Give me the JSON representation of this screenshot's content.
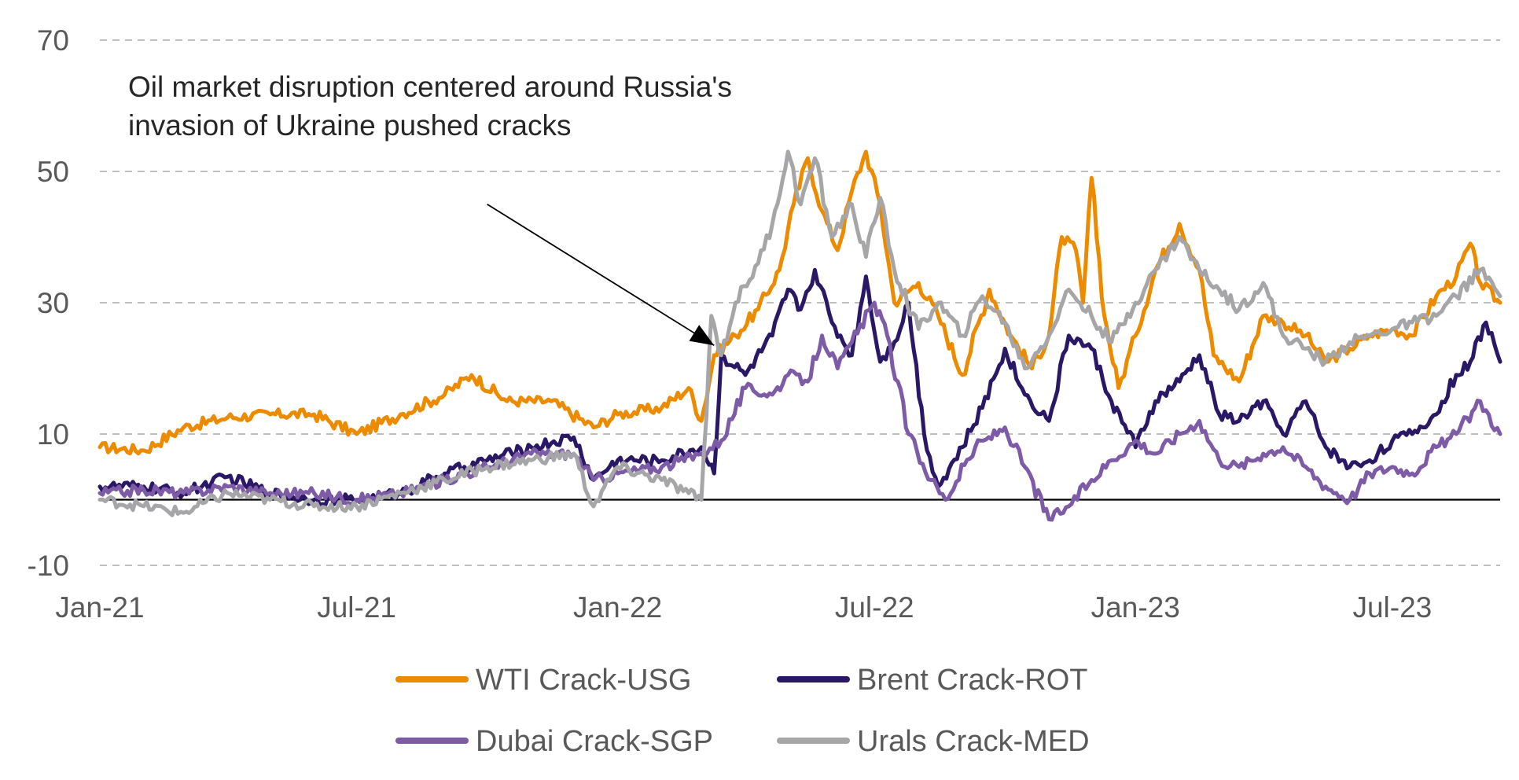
{
  "chart_data": {
    "type": "line",
    "title": "",
    "xlabel": "",
    "ylabel": "",
    "ylim": [
      -10,
      70
    ],
    "xlim": [
      "2021-01-01",
      "2023-09-15"
    ],
    "y_ticks": [
      -10,
      10,
      30,
      50,
      70
    ],
    "y_tick_labels": [
      "-10",
      "10",
      "30",
      "50",
      "70"
    ],
    "x_ticks": [
      {
        "date": "2021-01-01",
        "label": "Jan-21"
      },
      {
        "date": "2021-07-01",
        "label": "Jul-21"
      },
      {
        "date": "2022-01-01",
        "label": "Jan-22"
      },
      {
        "date": "2022-07-01",
        "label": "Jul-22"
      },
      {
        "date": "2023-01-01",
        "label": "Jan-23"
      },
      {
        "date": "2023-07-01",
        "label": "Jul-23"
      }
    ],
    "gridlines": "horizontal dashed",
    "zero_line": true,
    "legend_position": "bottom",
    "annotation": {
      "lines": [
        "Oil market disruption centered around Russia's",
        "invasion of Ukraine pushed cracks"
      ],
      "arrow_from": {
        "date": "2021-10-01",
        "value": 45
      },
      "arrow_to": {
        "date": "2022-03-10",
        "value": 23.5
      }
    },
    "series": [
      {
        "name": "WTI Crack-USG",
        "color": "#ED8B00",
        "points": [
          [
            "2021-01-01",
            8
          ],
          [
            "2021-02-01",
            7.5
          ],
          [
            "2021-03-01",
            11
          ],
          [
            "2021-04-01",
            12.5
          ],
          [
            "2021-05-01",
            13
          ],
          [
            "2021-06-01",
            13
          ],
          [
            "2021-07-01",
            10
          ],
          [
            "2021-08-01",
            13
          ],
          [
            "2021-09-01",
            16
          ],
          [
            "2021-09-20",
            19
          ],
          [
            "2021-10-15",
            15
          ],
          [
            "2021-11-15",
            15
          ],
          [
            "2021-12-15",
            11
          ],
          [
            "2022-01-01",
            13
          ],
          [
            "2022-02-01",
            14
          ],
          [
            "2022-02-20",
            17
          ],
          [
            "2022-03-01",
            12
          ],
          [
            "2022-03-10",
            22
          ],
          [
            "2022-03-25",
            25
          ],
          [
            "2022-04-10",
            29
          ],
          [
            "2022-04-25",
            35
          ],
          [
            "2022-05-05",
            45
          ],
          [
            "2022-05-15",
            52
          ],
          [
            "2022-05-25",
            44
          ],
          [
            "2022-06-05",
            38
          ],
          [
            "2022-06-15",
            47
          ],
          [
            "2022-06-25",
            53
          ],
          [
            "2022-07-05",
            45
          ],
          [
            "2022-07-15",
            30
          ],
          [
            "2022-08-01",
            33
          ],
          [
            "2022-08-15",
            28
          ],
          [
            "2022-09-01",
            19
          ],
          [
            "2022-09-20",
            32
          ],
          [
            "2022-10-05",
            25
          ],
          [
            "2022-10-20",
            20
          ],
          [
            "2022-11-01",
            25
          ],
          [
            "2022-11-10",
            40
          ],
          [
            "2022-11-20",
            38
          ],
          [
            "2022-11-25",
            30
          ],
          [
            "2022-12-01",
            49
          ],
          [
            "2022-12-10",
            28
          ],
          [
            "2022-12-20",
            17
          ],
          [
            "2023-01-01",
            25
          ],
          [
            "2023-01-15",
            35
          ],
          [
            "2023-02-01",
            42
          ],
          [
            "2023-02-15",
            35
          ],
          [
            "2023-02-25",
            22
          ],
          [
            "2023-03-15",
            18
          ],
          [
            "2023-04-01",
            28
          ],
          [
            "2023-04-15",
            27
          ],
          [
            "2023-05-01",
            25
          ],
          [
            "2023-05-15",
            21
          ],
          [
            "2023-06-01",
            23
          ],
          [
            "2023-06-15",
            25
          ],
          [
            "2023-07-01",
            26
          ],
          [
            "2023-07-15",
            25
          ],
          [
            "2023-08-01",
            31
          ],
          [
            "2023-08-15",
            34
          ],
          [
            "2023-08-25",
            39
          ],
          [
            "2023-09-01",
            33
          ],
          [
            "2023-09-15",
            30
          ]
        ]
      },
      {
        "name": "Brent Crack-ROT",
        "color": "#2A1765",
        "points": [
          [
            "2021-01-01",
            2
          ],
          [
            "2021-02-01",
            2
          ],
          [
            "2021-03-01",
            1
          ],
          [
            "2021-04-01",
            3.5
          ],
          [
            "2021-05-01",
            1
          ],
          [
            "2021-06-01",
            0
          ],
          [
            "2021-07-01",
            0
          ],
          [
            "2021-08-01",
            1
          ],
          [
            "2021-09-01",
            4
          ],
          [
            "2021-10-01",
            6
          ],
          [
            "2021-11-01",
            8
          ],
          [
            "2021-12-01",
            9.5
          ],
          [
            "2021-12-15",
            3
          ],
          [
            "2022-01-01",
            6
          ],
          [
            "2022-02-01",
            6
          ],
          [
            "2022-03-01",
            8
          ],
          [
            "2022-03-10",
            4
          ],
          [
            "2022-03-15",
            22
          ],
          [
            "2022-04-01",
            19
          ],
          [
            "2022-04-20",
            25
          ],
          [
            "2022-05-01",
            32
          ],
          [
            "2022-05-10",
            29
          ],
          [
            "2022-05-20",
            35
          ],
          [
            "2022-06-01",
            27
          ],
          [
            "2022-06-15",
            22
          ],
          [
            "2022-06-25",
            34
          ],
          [
            "2022-07-05",
            21
          ],
          [
            "2022-07-15",
            24
          ],
          [
            "2022-07-25",
            30
          ],
          [
            "2022-08-05",
            10
          ],
          [
            "2022-08-15",
            2
          ],
          [
            "2022-09-01",
            8
          ],
          [
            "2022-09-15",
            14
          ],
          [
            "2022-10-01",
            23
          ],
          [
            "2022-10-15",
            16
          ],
          [
            "2022-11-01",
            12
          ],
          [
            "2022-11-15",
            25
          ],
          [
            "2022-12-01",
            23
          ],
          [
            "2022-12-15",
            15
          ],
          [
            "2023-01-01",
            8
          ],
          [
            "2023-01-15",
            15
          ],
          [
            "2023-02-01",
            18
          ],
          [
            "2023-02-15",
            22
          ],
          [
            "2023-03-01",
            13
          ],
          [
            "2023-03-15",
            12
          ],
          [
            "2023-04-01",
            15
          ],
          [
            "2023-04-15",
            10
          ],
          [
            "2023-05-01",
            15
          ],
          [
            "2023-05-15",
            8
          ],
          [
            "2023-06-01",
            5
          ],
          [
            "2023-06-15",
            6
          ],
          [
            "2023-07-01",
            9
          ],
          [
            "2023-07-15",
            10
          ],
          [
            "2023-08-01",
            13
          ],
          [
            "2023-08-15",
            19
          ],
          [
            "2023-08-25",
            21
          ],
          [
            "2023-09-05",
            27
          ],
          [
            "2023-09-15",
            21
          ]
        ]
      },
      {
        "name": "Dubai Crack-SGP",
        "color": "#7D5BA6",
        "points": [
          [
            "2021-01-01",
            1
          ],
          [
            "2021-02-01",
            1.5
          ],
          [
            "2021-03-01",
            1
          ],
          [
            "2021-04-01",
            2
          ],
          [
            "2021-05-01",
            1
          ],
          [
            "2021-06-01",
            1
          ],
          [
            "2021-07-01",
            0
          ],
          [
            "2021-08-01",
            1
          ],
          [
            "2021-09-01",
            3
          ],
          [
            "2021-10-01",
            5
          ],
          [
            "2021-11-01",
            7
          ],
          [
            "2021-12-01",
            7
          ],
          [
            "2021-12-15",
            3
          ],
          [
            "2022-01-01",
            4
          ],
          [
            "2022-02-01",
            5
          ],
          [
            "2022-03-01",
            7
          ],
          [
            "2022-03-15",
            9
          ],
          [
            "2022-04-01",
            17
          ],
          [
            "2022-04-20",
            16
          ],
          [
            "2022-05-01",
            19
          ],
          [
            "2022-05-15",
            18
          ],
          [
            "2022-05-25",
            25
          ],
          [
            "2022-06-05",
            20
          ],
          [
            "2022-06-15",
            24
          ],
          [
            "2022-07-01",
            30
          ],
          [
            "2022-07-10",
            25
          ],
          [
            "2022-07-25",
            10
          ],
          [
            "2022-08-10",
            3
          ],
          [
            "2022-08-20",
            0
          ],
          [
            "2022-09-10",
            8
          ],
          [
            "2022-10-01",
            11
          ],
          [
            "2022-10-15",
            5
          ],
          [
            "2022-11-01",
            -3
          ],
          [
            "2022-11-15",
            -1
          ],
          [
            "2022-12-01",
            3
          ],
          [
            "2022-12-15",
            6
          ],
          [
            "2023-01-01",
            9
          ],
          [
            "2023-01-15",
            7
          ],
          [
            "2023-02-01",
            10
          ],
          [
            "2023-02-15",
            12
          ],
          [
            "2023-03-01",
            6
          ],
          [
            "2023-03-15",
            5
          ],
          [
            "2023-04-01",
            7
          ],
          [
            "2023-04-15",
            8
          ],
          [
            "2023-05-01",
            5
          ],
          [
            "2023-05-15",
            2
          ],
          [
            "2023-06-01",
            0
          ],
          [
            "2023-06-15",
            4
          ],
          [
            "2023-07-01",
            5
          ],
          [
            "2023-07-15",
            4
          ],
          [
            "2023-08-01",
            8
          ],
          [
            "2023-08-15",
            10
          ],
          [
            "2023-09-01",
            15
          ],
          [
            "2023-09-15",
            10
          ]
        ]
      },
      {
        "name": "Urals Crack-MED",
        "color": "#A6A6A8",
        "points": [
          [
            "2021-01-01",
            0
          ],
          [
            "2021-02-01",
            -1
          ],
          [
            "2021-03-01",
            -2
          ],
          [
            "2021-04-01",
            1
          ],
          [
            "2021-05-01",
            0
          ],
          [
            "2021-06-01",
            -1
          ],
          [
            "2021-07-01",
            -1
          ],
          [
            "2021-08-01",
            1
          ],
          [
            "2021-09-01",
            3
          ],
          [
            "2021-10-01",
            5
          ],
          [
            "2021-11-01",
            6
          ],
          [
            "2021-12-01",
            7
          ],
          [
            "2021-12-15",
            -1
          ],
          [
            "2022-01-01",
            5
          ],
          [
            "2022-02-01",
            3
          ],
          [
            "2022-02-20",
            1
          ],
          [
            "2022-03-01",
            0
          ],
          [
            "2022-03-08",
            28
          ],
          [
            "2022-03-15",
            22
          ],
          [
            "2022-03-25",
            30
          ],
          [
            "2022-04-10",
            36
          ],
          [
            "2022-04-20",
            42
          ],
          [
            "2022-05-01",
            53
          ],
          [
            "2022-05-10",
            45
          ],
          [
            "2022-05-20",
            52
          ],
          [
            "2022-06-01",
            40
          ],
          [
            "2022-06-15",
            45
          ],
          [
            "2022-06-25",
            37
          ],
          [
            "2022-07-05",
            46
          ],
          [
            "2022-07-15",
            35
          ],
          [
            "2022-08-01",
            26
          ],
          [
            "2022-08-15",
            30
          ],
          [
            "2022-09-01",
            25
          ],
          [
            "2022-09-15",
            31
          ],
          [
            "2022-10-01",
            27
          ],
          [
            "2022-10-15",
            20
          ],
          [
            "2022-11-01",
            25
          ],
          [
            "2022-11-15",
            32
          ],
          [
            "2022-12-01",
            28
          ],
          [
            "2022-12-15",
            24
          ],
          [
            "2023-01-01",
            30
          ],
          [
            "2023-01-15",
            35
          ],
          [
            "2023-02-01",
            40
          ],
          [
            "2023-02-15",
            35
          ],
          [
            "2023-03-01",
            32
          ],
          [
            "2023-03-15",
            29
          ],
          [
            "2023-04-01",
            33
          ],
          [
            "2023-04-15",
            25
          ],
          [
            "2023-05-01",
            23
          ],
          [
            "2023-05-15",
            21
          ],
          [
            "2023-06-01",
            24
          ],
          [
            "2023-06-15",
            25
          ],
          [
            "2023-07-01",
            26
          ],
          [
            "2023-07-15",
            27
          ],
          [
            "2023-08-01",
            28
          ],
          [
            "2023-08-15",
            31
          ],
          [
            "2023-09-01",
            35
          ],
          [
            "2023-09-15",
            31
          ]
        ]
      }
    ]
  }
}
